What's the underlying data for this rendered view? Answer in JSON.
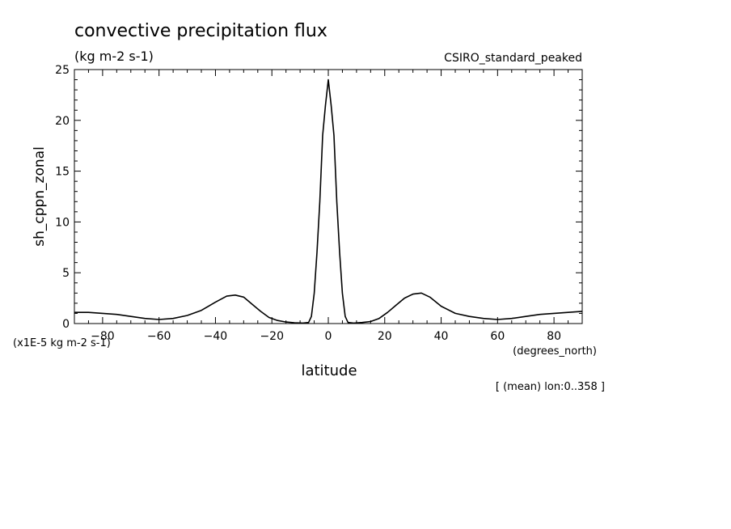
{
  "chart_data": {
    "type": "line",
    "title": "convective precipitation flux",
    "subtitle": "(kg m-2 s-1)",
    "dataset_label": "CSIRO_standard_peaked",
    "ylabel": "sh_cppn_zonal",
    "xlabel": "latitude",
    "xunits": "(degrees_north)",
    "yscale_note": "(x1E-5 kg m-2 s-1)",
    "footnote": "[ (mean) lon:0..358 ]",
    "xlim": [
      -90,
      90
    ],
    "ylim": [
      0,
      25
    ],
    "xticks": [
      -80,
      -60,
      -40,
      -20,
      0,
      20,
      40,
      60,
      80
    ],
    "yticks": [
      0,
      5,
      10,
      15,
      20,
      25
    ],
    "grid": false,
    "series": [
      {
        "x": [
          -90,
          -85,
          -80,
          -75,
          -70,
          -65,
          -60,
          -55,
          -50,
          -45,
          -40,
          -36,
          -33,
          -30,
          -27,
          -24,
          -21,
          -18,
          -15,
          -12,
          -9,
          -7,
          -6,
          -5,
          -4,
          -3,
          -2,
          -1,
          0,
          1,
          2,
          3,
          4,
          5,
          6,
          7,
          9,
          12,
          15,
          18,
          21,
          24,
          27,
          30,
          33,
          36,
          40,
          45,
          50,
          55,
          60,
          65,
          70,
          75,
          80,
          85,
          90
        ],
        "y": [
          1.1,
          1.1,
          1.0,
          0.9,
          0.7,
          0.5,
          0.4,
          0.5,
          0.8,
          1.3,
          2.1,
          2.7,
          2.8,
          2.6,
          1.9,
          1.2,
          0.6,
          0.3,
          0.15,
          0.08,
          0.05,
          0.1,
          0.7,
          3.0,
          7.0,
          12.0,
          18.5,
          21.5,
          24.0,
          21.5,
          18.5,
          12.0,
          7.0,
          3.0,
          0.7,
          0.1,
          0.05,
          0.1,
          0.2,
          0.5,
          1.1,
          1.8,
          2.5,
          2.9,
          3.0,
          2.6,
          1.7,
          1.0,
          0.7,
          0.5,
          0.4,
          0.5,
          0.7,
          0.9,
          1.0,
          1.1,
          1.2
        ]
      }
    ]
  }
}
